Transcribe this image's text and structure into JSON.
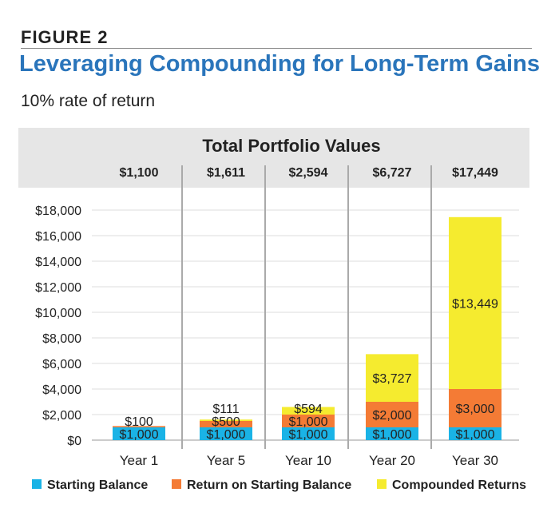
{
  "header": {
    "figure": "FIGURE 2",
    "title": "Leveraging Compounding for Long-Term Gains",
    "subtitle": "10% rate of return"
  },
  "chart_data": {
    "type": "bar",
    "stacked": true,
    "title": "Total Portfolio Values",
    "categories": [
      "Year 1",
      "Year 5",
      "Year 10",
      "Year 20",
      "Year 30"
    ],
    "totals": [
      "$1,100",
      "$1,611",
      "$2,594",
      "$6,727",
      "$17,449"
    ],
    "series": [
      {
        "name": "Starting Balance",
        "color": "#1ab3e6",
        "values": [
          1000,
          1000,
          1000,
          1000,
          1000
        ],
        "labels": [
          "$1,000",
          "$1,000",
          "$1,000",
          "$1,000",
          "$1,000"
        ]
      },
      {
        "name": "Return on Starting Balance",
        "color": "#f47b35",
        "values": [
          100,
          500,
          1000,
          2000,
          3000
        ],
        "labels": [
          "$100",
          "$500",
          "$1,000",
          "$2,000",
          "$3,000"
        ]
      },
      {
        "name": "Compounded Returns",
        "color": "#f5eb2f",
        "values": [
          0,
          111,
          594,
          3727,
          13449
        ],
        "labels": [
          "",
          "$111",
          "$594",
          "$3,727",
          "$13,449"
        ]
      }
    ],
    "ylim": [
      0,
      18000
    ],
    "yticks": [
      "$0",
      "$2,000",
      "$4,000",
      "$6,000",
      "$8,000",
      "$10,000",
      "$12,000",
      "$14,000",
      "$16,000",
      "$18,000"
    ],
    "grid": true,
    "legend": "bottom"
  }
}
